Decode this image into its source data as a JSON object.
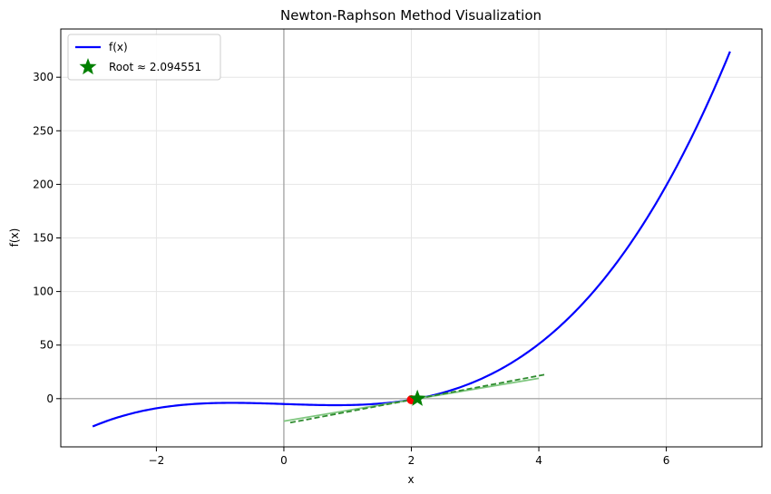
{
  "chart_data": {
    "type": "line",
    "title": "Newton-Raphson Method Visualization",
    "xlabel": "x",
    "ylabel": "f(x)",
    "xlim": [
      -3.5,
      7.5
    ],
    "ylim": [
      -45,
      345
    ],
    "xticks": [
      -2,
      0,
      2,
      4,
      6
    ],
    "yticks": [
      0,
      50,
      100,
      150,
      200,
      250,
      300
    ],
    "grid": true,
    "legend_position": "top-left",
    "function": {
      "name": "f(x)",
      "expression": "x^3 - 2x - 5",
      "x_range": [
        -3,
        7
      ],
      "color": "#0000ff",
      "sample_points": [
        {
          "x": -3,
          "y": -26
        },
        {
          "x": -2,
          "y": -9
        },
        {
          "x": -1,
          "y": -4
        },
        {
          "x": 0,
          "y": -5
        },
        {
          "x": 1,
          "y": -6
        },
        {
          "x": 2,
          "y": -1
        },
        {
          "x": 3,
          "y": 16
        },
        {
          "x": 4,
          "y": 51
        },
        {
          "x": 5,
          "y": 110
        },
        {
          "x": 6,
          "y": 199
        },
        {
          "x": 7,
          "y": 324
        }
      ]
    },
    "tangent_lines": [
      {
        "x0": 2.0,
        "y0": -1.0,
        "x_from": 0.0,
        "x_to": 4.0,
        "color": "#7fc77f",
        "dash": false
      },
      {
        "x0": 2.1,
        "y0": 0.061,
        "x_from": 0.1,
        "x_to": 4.1,
        "color": "#2e8b2e",
        "dash": true
      }
    ],
    "iteration_points": [
      {
        "x": 2.0,
        "y": -1.0,
        "color": "#ff0000"
      }
    ],
    "root": {
      "label": "Root ≈ 2.094551",
      "x": 2.094551,
      "y": 0,
      "color": "#008000"
    },
    "reference_lines": [
      {
        "axis": "x",
        "value": 0
      },
      {
        "axis": "y",
        "value": 0
      }
    ]
  }
}
